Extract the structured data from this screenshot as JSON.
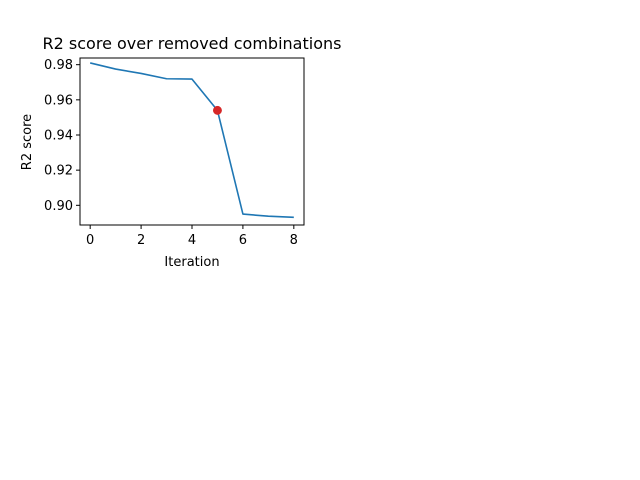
{
  "chart_data": {
    "type": "line",
    "title": "R2 score over removed combinations",
    "xlabel": "Iteration",
    "ylabel": "R2 score",
    "xlim": [
      -0.4,
      8.4
    ],
    "ylim": [
      0.8888,
      0.9838
    ],
    "xticks": [
      0,
      2,
      4,
      6,
      8
    ],
    "xtick_labels": [
      "0",
      "2",
      "4",
      "6",
      "8"
    ],
    "yticks": [
      0.9,
      0.92,
      0.94,
      0.96,
      0.98
    ],
    "ytick_labels": [
      "0.90",
      "0.92",
      "0.94",
      "0.96",
      "0.98"
    ],
    "grid": false,
    "series": [
      {
        "x": [
          0,
          1,
          2,
          3,
          4,
          5,
          6,
          7,
          8
        ],
        "values": [
          0.981,
          0.9775,
          0.975,
          0.972,
          0.9718,
          0.954,
          0.895,
          0.8938,
          0.8932
        ],
        "color": "#1f77b4"
      }
    ],
    "highlight": {
      "x": 5,
      "y": 0.954,
      "color": "#d62728"
    }
  }
}
